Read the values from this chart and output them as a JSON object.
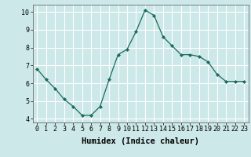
{
  "x": [
    0,
    1,
    2,
    3,
    4,
    5,
    6,
    7,
    8,
    9,
    10,
    11,
    12,
    13,
    14,
    15,
    16,
    17,
    18,
    19,
    20,
    21,
    22,
    23
  ],
  "y": [
    6.8,
    6.2,
    5.7,
    5.1,
    4.7,
    4.2,
    4.2,
    4.7,
    6.2,
    7.6,
    7.9,
    8.9,
    10.1,
    9.8,
    8.6,
    8.1,
    7.6,
    7.6,
    7.5,
    7.2,
    6.5,
    6.1,
    6.1,
    6.1
  ],
  "xlabel": "Humidex (Indice chaleur)",
  "ylim": [
    3.8,
    10.4
  ],
  "xlim": [
    -0.5,
    23.5
  ],
  "yticks": [
    4,
    5,
    6,
    7,
    8,
    9,
    10
  ],
  "xticks": [
    0,
    1,
    2,
    3,
    4,
    5,
    6,
    7,
    8,
    9,
    10,
    11,
    12,
    13,
    14,
    15,
    16,
    17,
    18,
    19,
    20,
    21,
    22,
    23
  ],
  "line_color": "#1a6b5a",
  "marker": "D",
  "marker_size": 2.0,
  "bg_color": "#cde8e8",
  "grid_color": "#ffffff",
  "axis_bg": "#cde8e8",
  "xlabel_fontsize": 7.5,
  "tick_fontsize": 6.0
}
